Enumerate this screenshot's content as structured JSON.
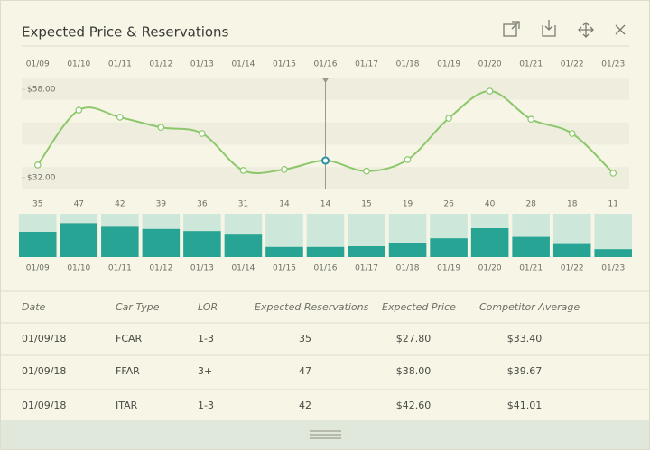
{
  "header": {
    "title": "Expected Price & Reservations"
  },
  "chart_data": {
    "type": "line",
    "categories": [
      "01/09",
      "01/10",
      "01/11",
      "01/12",
      "01/13",
      "01/14",
      "01/15",
      "01/16",
      "01/17",
      "01/18",
      "01/19",
      "01/20",
      "01/21",
      "01/22",
      "01/23"
    ],
    "series": [
      {
        "name": "Expected Price",
        "type": "line",
        "color": "#8cc86b",
        "values": [
          35.7,
          51.9,
          49.8,
          46.8,
          45.0,
          34.1,
          34.4,
          37.0,
          33.9,
          37.3,
          49.5,
          57.5,
          49.2,
          45.0,
          33.3
        ]
      },
      {
        "name": "Expected Reservations",
        "type": "bar",
        "axis": "y2",
        "color": "#27a493",
        "values": [
          35,
          47,
          42,
          39,
          36,
          31,
          14,
          14,
          15,
          19,
          26,
          40,
          28,
          18,
          11
        ]
      }
    ],
    "ylim": [
      28.5,
      61.5
    ],
    "yticks": [
      {
        "value": 58,
        "label": "$58.00"
      },
      {
        "value": 32,
        "label": "$32.00"
      }
    ],
    "y2lim": [
      0,
      60
    ],
    "selected": 7
  },
  "table": {
    "columns": [
      "Date",
      "Car Type",
      "LOR",
      "Expected Reservations",
      "Expected Price",
      "Competitor Average"
    ],
    "rows": [
      [
        "01/09/18",
        "FCAR",
        "1-3",
        "35",
        "$27.80",
        "$33.40"
      ],
      [
        "01/09/18",
        "FFAR",
        "3+",
        "47",
        "$38.00",
        "$39.67"
      ],
      [
        "01/09/18",
        "ITAR",
        "1-3",
        "42",
        "$42.60",
        "$41.01"
      ]
    ]
  }
}
